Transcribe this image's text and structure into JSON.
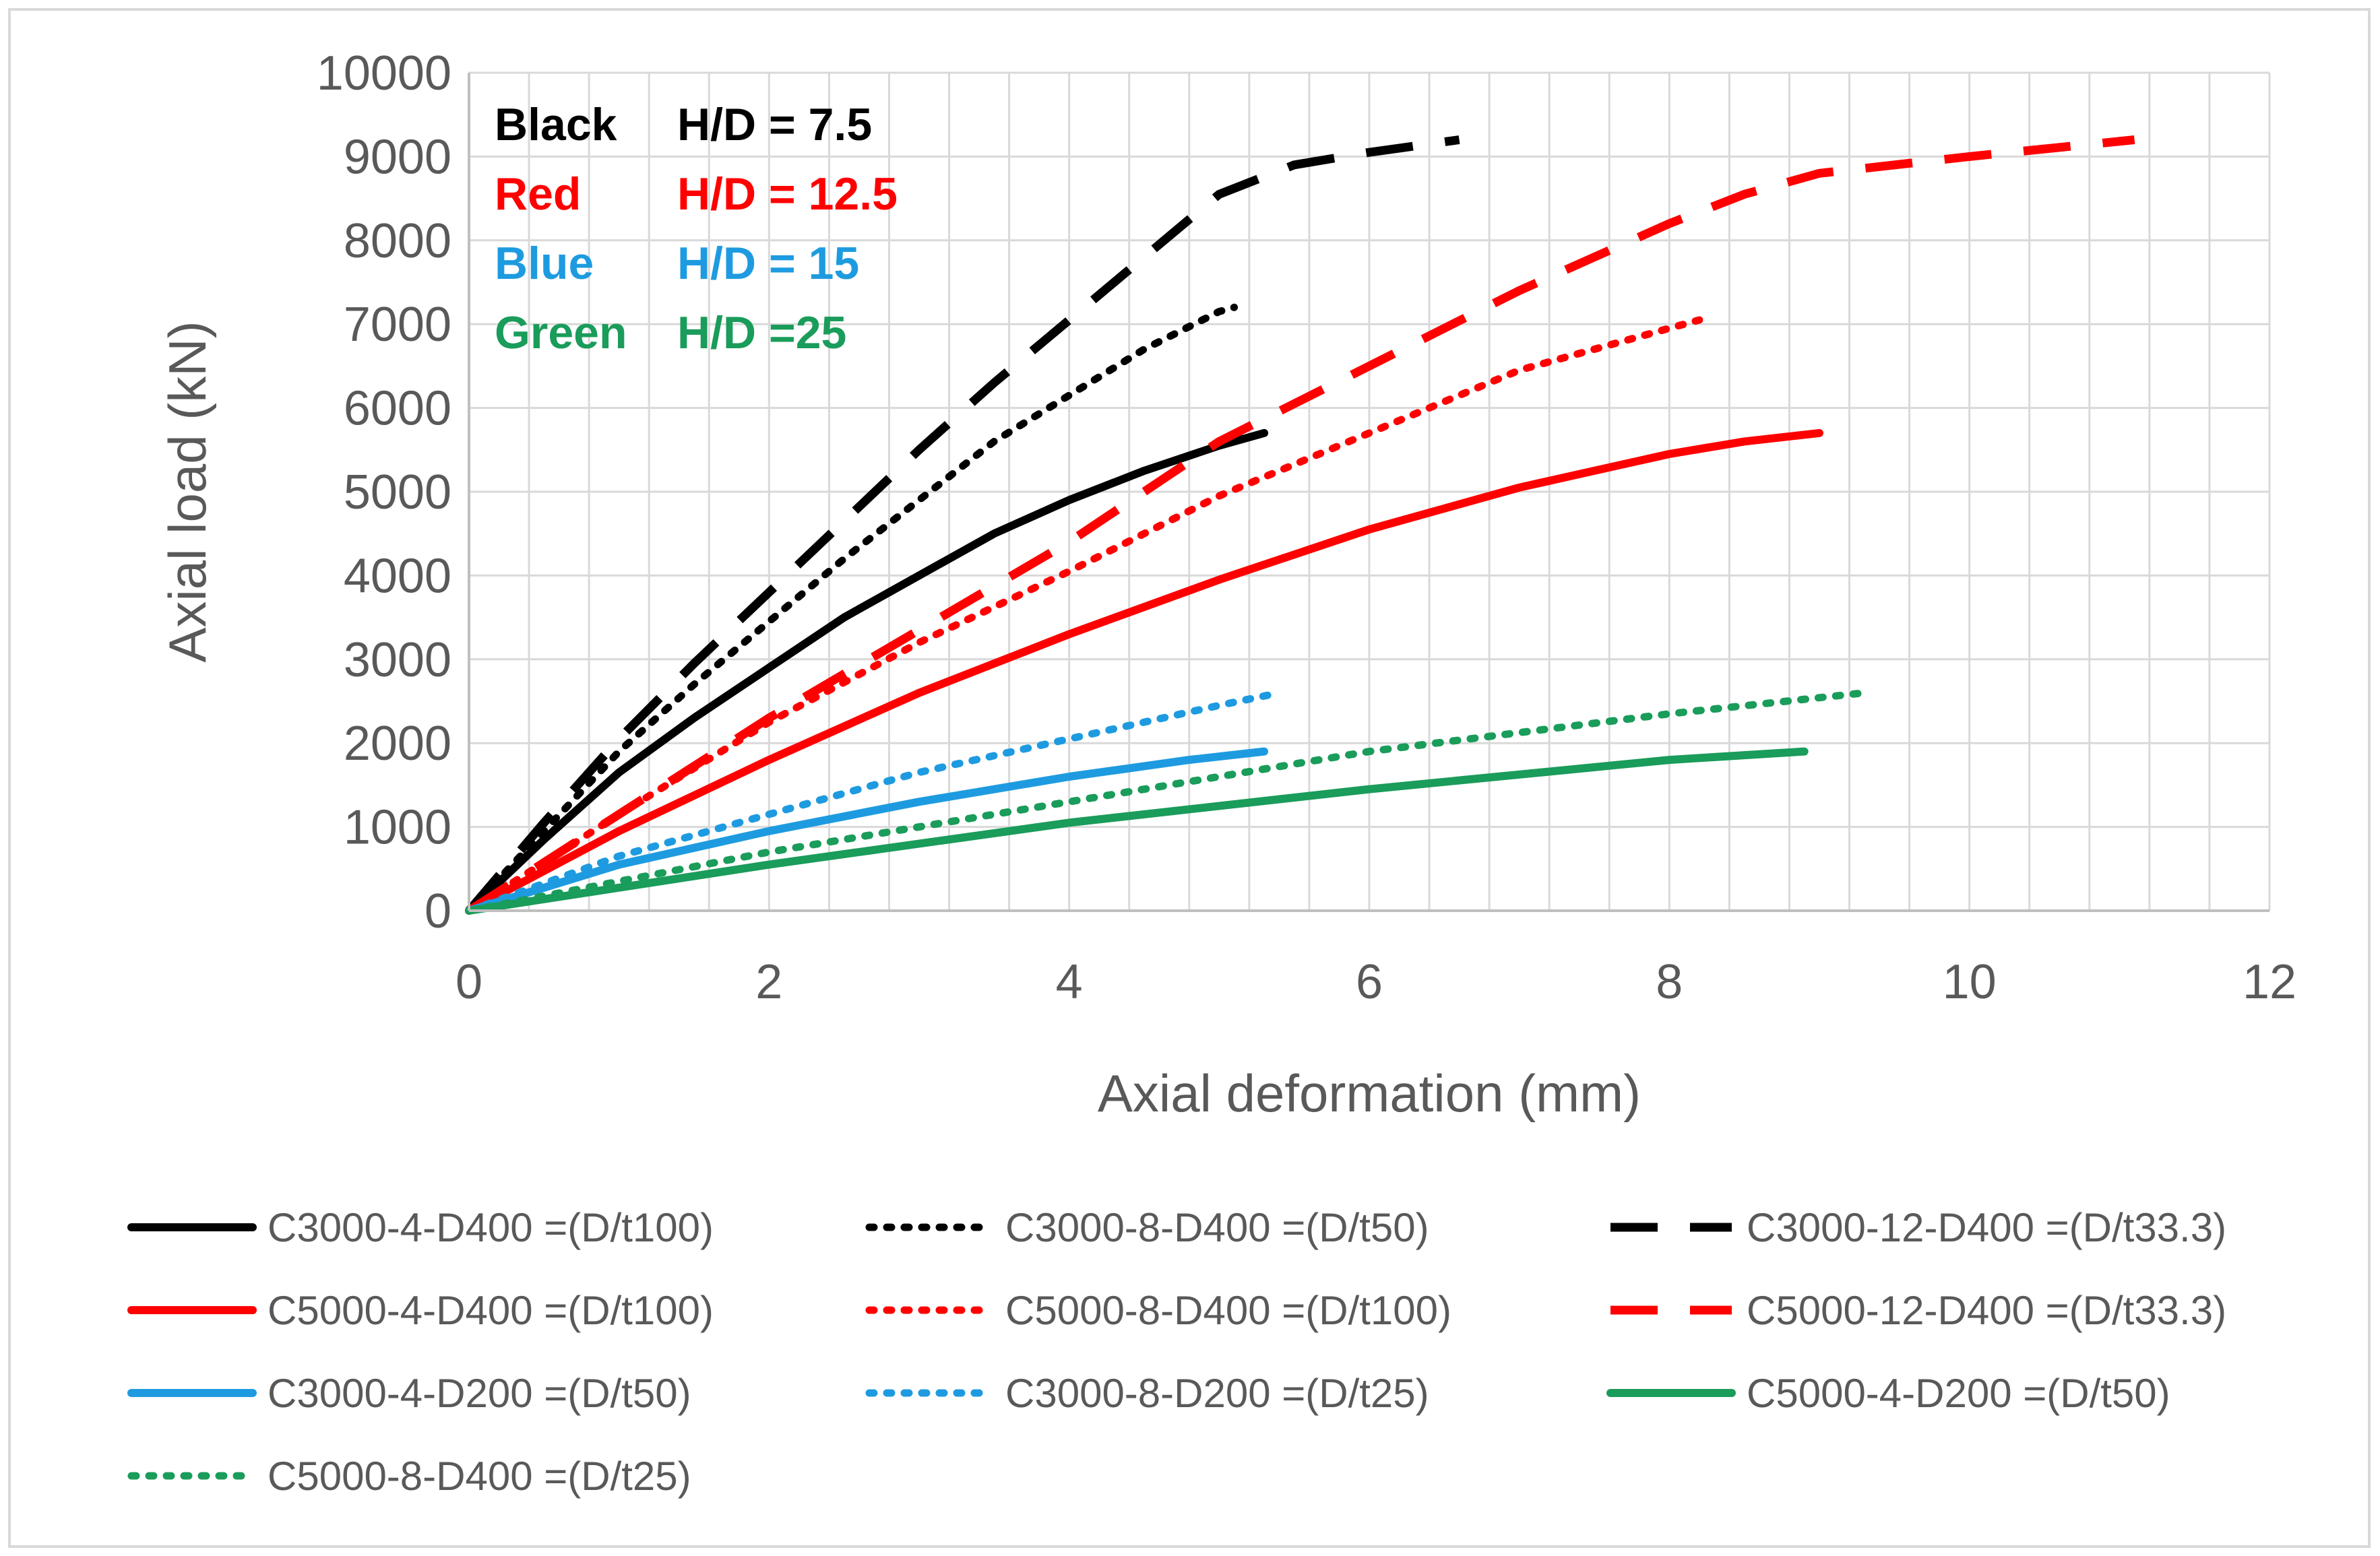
{
  "chart_data": {
    "type": "line",
    "title": "",
    "xlabel": "Axial deformation  (mm)",
    "ylabel": "Axial load (kN)",
    "xlim": [
      0,
      12
    ],
    "ylim": [
      0,
      10000
    ],
    "xticks": [
      0,
      2,
      4,
      6,
      8,
      10,
      12
    ],
    "yticks": [
      0,
      1000,
      2000,
      3000,
      4000,
      5000,
      6000,
      7000,
      8000,
      9000,
      10000
    ],
    "grid": true,
    "legend_position": "bottom",
    "annotations": [
      {
        "color_name": "Black",
        "ratio": "H/D = 7.5",
        "color": "#000000"
      },
      {
        "color_name": "Red",
        "ratio": "H/D = 12.5",
        "color": "#ff0000"
      },
      {
        "color_name": "Blue",
        "ratio": "H/D = 15",
        "color": "#1e9be0"
      },
      {
        "color_name": "Green",
        "ratio": "H/D =25",
        "color": "#1a9c5a"
      }
    ],
    "series": [
      {
        "name": "C3000-4-D400 =(D/t100)",
        "color": "#000000",
        "style": "solid",
        "x": [
          0,
          0.5,
          1,
          1.5,
          2,
          2.5,
          3,
          3.5,
          4,
          4.5,
          5,
          5.3
        ],
        "y": [
          0,
          850,
          1650,
          2300,
          2900,
          3500,
          4000,
          4500,
          4900,
          5250,
          5550,
          5700
        ]
      },
      {
        "name": "C3000-8-D400 =(D/t50)",
        "color": "#000000",
        "style": "dotted",
        "x": [
          0,
          0.5,
          1,
          1.5,
          2,
          2.5,
          3,
          3.5,
          4,
          4.5,
          5,
          5.1
        ],
        "y": [
          0,
          950,
          1900,
          2700,
          3450,
          4200,
          4900,
          5600,
          6150,
          6700,
          7150,
          7200
        ]
      },
      {
        "name": "C3000-12-D400 =(D/t33.3)",
        "color": "#000000",
        "style": "dashed",
        "x": [
          0,
          0.5,
          1,
          1.5,
          2,
          2.5,
          3,
          3.5,
          4,
          4.5,
          5,
          5.5,
          6,
          6.6
        ],
        "y": [
          0,
          1050,
          2050,
          2950,
          3800,
          4650,
          5500,
          6300,
          7050,
          7800,
          8550,
          8900,
          9050,
          9200
        ]
      },
      {
        "name": "C5000-4-D400 =(D/t100)",
        "color": "#ff0000",
        "style": "solid",
        "x": [
          0,
          1,
          2,
          3,
          4,
          5,
          6,
          7,
          8,
          8.5,
          9
        ],
        "y": [
          0,
          950,
          1800,
          2600,
          3300,
          3950,
          4550,
          5050,
          5450,
          5600,
          5700
        ]
      },
      {
        "name": "C5000-8-D400 =(D/t100)",
        "color": "#ff0000",
        "style": "dotted",
        "x": [
          0,
          1,
          2,
          3,
          4,
          5,
          6,
          7,
          8,
          8.2
        ],
        "y": [
          0,
          1150,
          2250,
          3200,
          4050,
          4950,
          5700,
          6450,
          6950,
          7050
        ]
      },
      {
        "name": "C5000-12-D400 =(D/t33.3)",
        "color": "#ff0000",
        "style": "dashed",
        "x": [
          0,
          1,
          2,
          3,
          4,
          5,
          6,
          7,
          8,
          8.5,
          9,
          10,
          11.1
        ],
        "y": [
          0,
          1150,
          2300,
          3350,
          4400,
          5600,
          6500,
          7400,
          8200,
          8550,
          8800,
          9000,
          9200
        ]
      },
      {
        "name": "C3000-4-D200 =(D/t50)",
        "color": "#1e9be0",
        "style": "solid",
        "x": [
          0,
          1,
          2,
          3,
          4,
          4.8,
          5.3
        ],
        "y": [
          0,
          550,
          950,
          1300,
          1600,
          1800,
          1900
        ]
      },
      {
        "name": "C3000-8-D200 =(D/t25)",
        "color": "#1e9be0",
        "style": "dotted",
        "x": [
          0,
          1,
          2,
          3,
          4,
          5,
          5.4
        ],
        "y": [
          0,
          650,
          1150,
          1650,
          2050,
          2450,
          2600
        ]
      },
      {
        "name": "C5000-4-D200 =(D/t50)",
        "color": "#1a9c5a",
        "style": "solid",
        "x": [
          0,
          2,
          4,
          6,
          8,
          8.9
        ],
        "y": [
          0,
          550,
          1050,
          1450,
          1800,
          1900
        ]
      },
      {
        "name": "C5000-8-D400 =(D/t25)",
        "color": "#1a9c5a",
        "style": "dotted",
        "x": [
          0,
          2,
          4,
          6,
          8,
          9.3
        ],
        "y": [
          0,
          700,
          1300,
          1900,
          2350,
          2600
        ]
      }
    ]
  }
}
